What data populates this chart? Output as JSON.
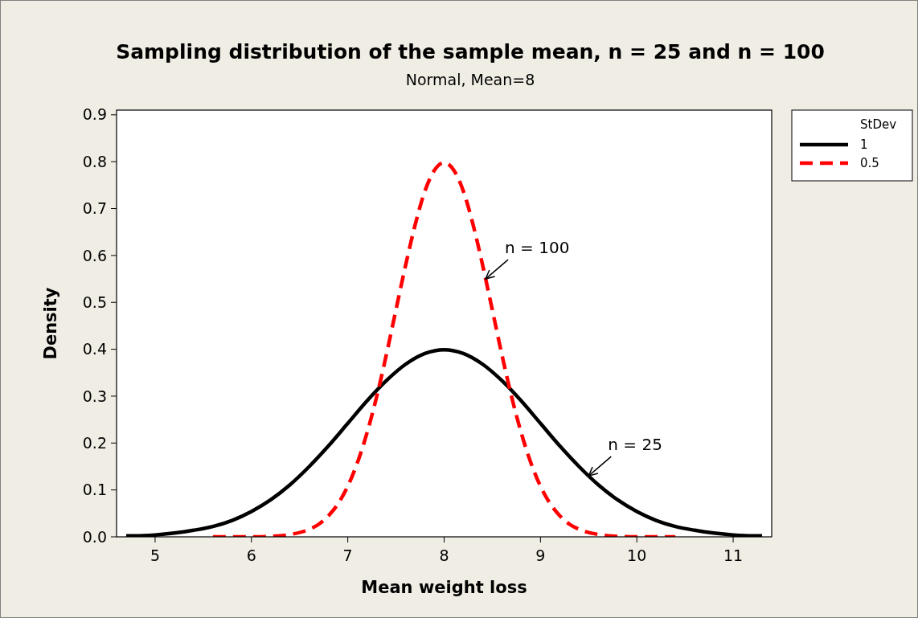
{
  "chart_data": {
    "type": "line",
    "title": "Sampling distribution of the sample mean, n = 25 and n = 100",
    "subtitle": "Normal, Mean=8",
    "xlabel": "Mean weight loss",
    "ylabel": "Density",
    "legend_title": "StDev",
    "legend": "top right",
    "grid": false,
    "marker": "none",
    "xlim": [
      4.6,
      11.4
    ],
    "xticks": [
      5,
      6,
      7,
      8,
      9,
      10,
      11
    ],
    "ylim": [
      0,
      0.91
    ],
    "yticks": [
      {
        "value": 0,
        "label": "0.0"
      },
      {
        "value": 0.1,
        "label": "0.1"
      },
      {
        "value": 0.2,
        "label": "0.2"
      },
      {
        "value": 0.3,
        "label": "0.3"
      },
      {
        "value": 0.4,
        "label": "0.4"
      },
      {
        "value": 0.5,
        "label": "0.5"
      },
      {
        "value": 0.6,
        "label": "0.6"
      },
      {
        "value": 0.7,
        "label": "0.7"
      },
      {
        "value": 0.8,
        "label": "0.8"
      },
      {
        "value": 0.9,
        "label": "0.9"
      }
    ],
    "series": [
      {
        "name": "1",
        "color": "#000000",
        "line_style": "solid",
        "x": [
          4.7,
          4.8,
          5,
          5.2,
          5.4,
          5.6,
          5.8,
          6,
          6.2,
          6.4,
          6.6,
          6.8,
          7,
          7.2,
          7.4,
          7.6,
          7.8,
          8,
          8.2,
          8.4,
          8.6,
          8.8,
          9,
          9.2,
          9.4,
          9.6,
          9.8,
          10,
          10.2,
          10.4,
          10.6,
          10.8,
          11,
          11.2,
          11.3
        ],
        "values": [
          0.002,
          0.002,
          0.004,
          0.008,
          0.014,
          0.022,
          0.035,
          0.054,
          0.079,
          0.111,
          0.15,
          0.194,
          0.242,
          0.29,
          0.333,
          0.368,
          0.391,
          0.399,
          0.391,
          0.368,
          0.333,
          0.29,
          0.242,
          0.194,
          0.15,
          0.111,
          0.079,
          0.054,
          0.035,
          0.022,
          0.014,
          0.008,
          0.004,
          0.002,
          0.002
        ]
      },
      {
        "name": "0.5",
        "color": "#ff0000",
        "line_style": "dashed",
        "x": [
          5.6,
          6,
          6.2,
          6.4,
          6.6,
          6.7,
          6.8,
          6.9,
          7,
          7.1,
          7.2,
          7.3,
          7.4,
          7.5,
          7.6,
          7.7,
          7.8,
          7.9,
          8,
          8.1,
          8.2,
          8.3,
          8.4,
          8.5,
          8.6,
          8.7,
          8.8,
          8.9,
          9,
          9.1,
          9.2,
          9.3,
          9.4,
          9.6,
          9.8,
          10,
          10.4
        ],
        "values": [
          0,
          0,
          0.001,
          0.005,
          0.016,
          0.027,
          0.045,
          0.071,
          0.108,
          0.158,
          0.222,
          0.299,
          0.388,
          0.484,
          0.579,
          0.666,
          0.737,
          0.782,
          0.798,
          0.782,
          0.737,
          0.666,
          0.579,
          0.484,
          0.388,
          0.299,
          0.222,
          0.158,
          0.108,
          0.071,
          0.045,
          0.027,
          0.016,
          0.005,
          0.001,
          0,
          0
        ]
      }
    ],
    "annotations": [
      {
        "text": "n = 100",
        "x": 8.43,
        "y": 0.55
      },
      {
        "text": "n = 25",
        "x": 9.5,
        "y": 0.13
      }
    ]
  }
}
